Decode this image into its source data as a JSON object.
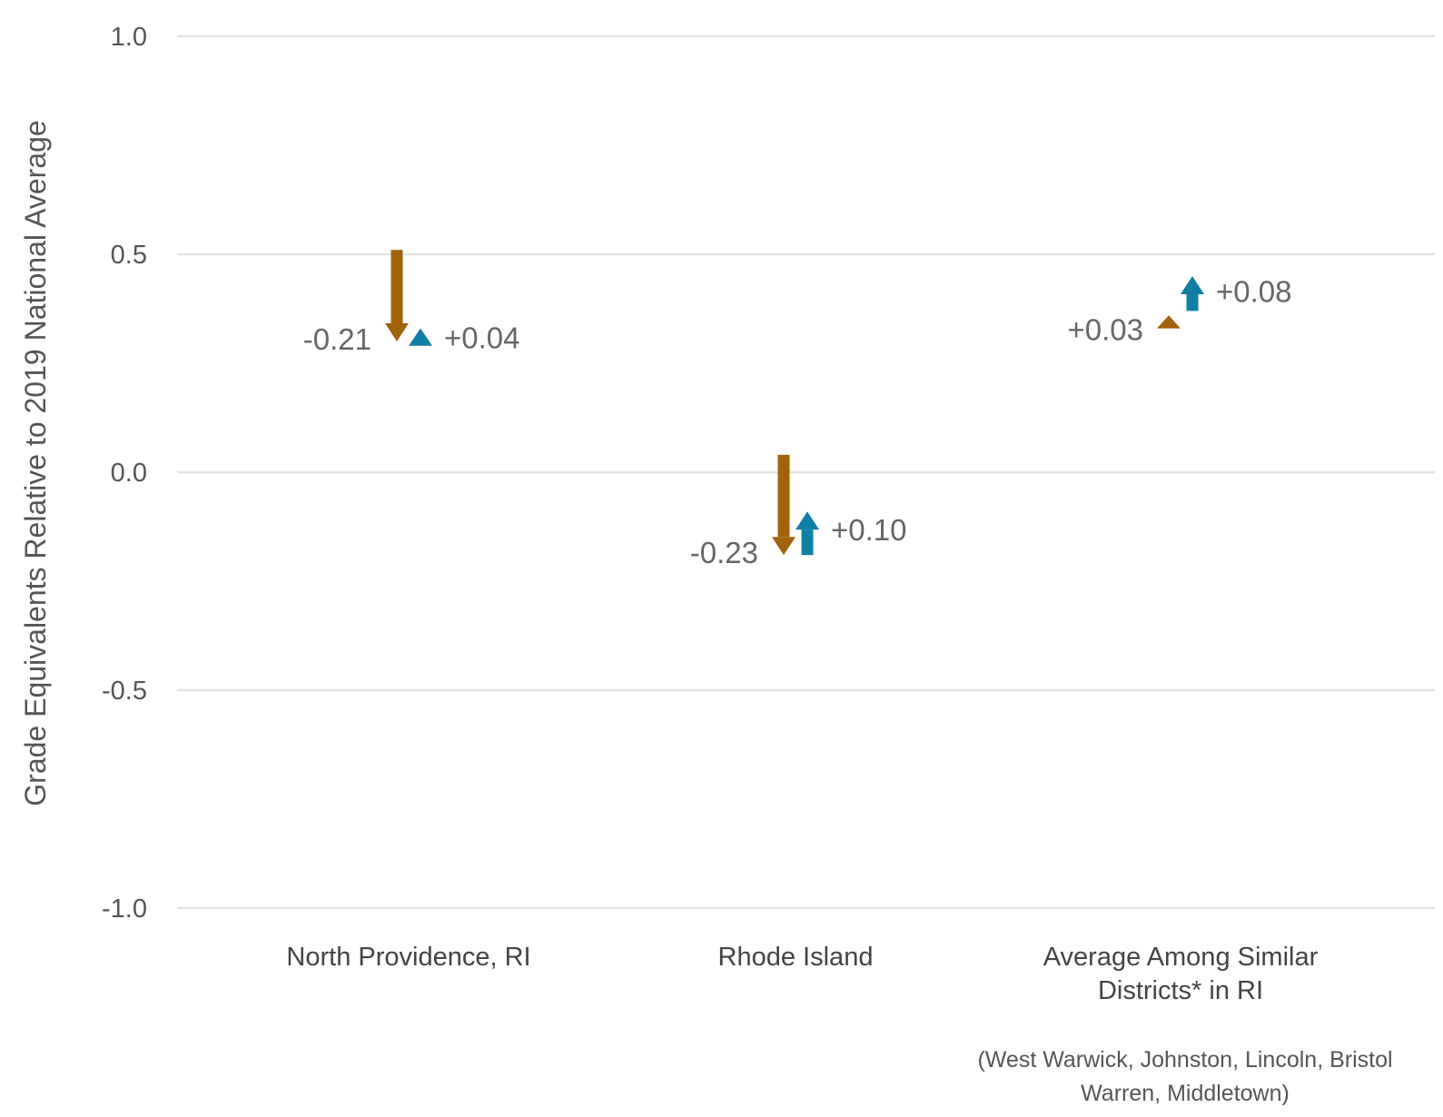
{
  "chart_data": {
    "type": "arrow",
    "ylabel": "Grade Equivalents Relative to 2019 National Average",
    "ylim": [
      -1.0,
      1.0
    ],
    "yticks": [
      {
        "value": 1.0,
        "label": "1.0"
      },
      {
        "value": 0.5,
        "label": "0.5"
      },
      {
        "value": 0.0,
        "label": "0.0"
      },
      {
        "value": -0.5,
        "label": "-0.5"
      },
      {
        "value": -1.0,
        "label": "-1.0"
      }
    ],
    "grid": true,
    "categories": [
      {
        "lines": [
          "North Providence, RI"
        ]
      },
      {
        "lines": [
          "Rhode Island"
        ]
      },
      {
        "lines": [
          "Average Among Similar",
          "Districts* in RI"
        ]
      }
    ],
    "footnote_lines": [
      "(West Warwick, Johnston, Lincoln, Bristol",
      "Warren, Middletown)"
    ],
    "series": [
      {
        "color": "#a0620a",
        "arrows": [
          {
            "from": 0.51,
            "to": 0.3,
            "label": "-0.21"
          },
          {
            "from": 0.04,
            "to": -0.19,
            "label": "-0.23"
          },
          {
            "from": 0.33,
            "to": 0.36,
            "label": "+0.03"
          }
        ]
      },
      {
        "color": "#0f7fa6",
        "arrows": [
          {
            "from": 0.29,
            "to": 0.33,
            "label": "+0.04"
          },
          {
            "from": -0.19,
            "to": -0.09,
            "label": "+0.10"
          },
          {
            "from": 0.37,
            "to": 0.45,
            "label": "+0.08"
          }
        ]
      }
    ]
  }
}
